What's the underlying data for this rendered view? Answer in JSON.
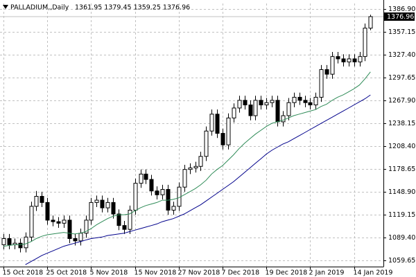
{
  "chart_data": {
    "type": "candlestick",
    "title": "PALLADIUM,,Daily",
    "ohlc_text": "1361.95 1379.45 1359.25 1376.96",
    "last_price": 1376.96,
    "categories": [
      "15 Oct 2018",
      null,
      null,
      null,
      null,
      null,
      null,
      null,
      "25 Oct 2018",
      null,
      null,
      null,
      null,
      null,
      null,
      null,
      "5 Nov 2018",
      null,
      null,
      null,
      null,
      null,
      null,
      null,
      "15 Nov 2018",
      null,
      null,
      null,
      null,
      null,
      null,
      null,
      "27 Nov 2018",
      null,
      null,
      null,
      null,
      null,
      null,
      null,
      "7 Dec 2018",
      null,
      null,
      null,
      null,
      null,
      null,
      null,
      "19 Dec 2018",
      null,
      null,
      null,
      null,
      null,
      null,
      null,
      "2 Jan 2019",
      null,
      null,
      null,
      null,
      null,
      null,
      null,
      "14 Jan 2019",
      null,
      null,
      null
    ],
    "open": [
      1080,
      1088,
      1080,
      1082,
      1076,
      1090,
      1130,
      1143,
      1135,
      1112,
      1110,
      1108,
      1112,
      1088,
      1085,
      1095,
      1112,
      1135,
      1138,
      1128,
      1135,
      1120,
      1105,
      1100,
      1125,
      1160,
      1172,
      1165,
      1150,
      1145,
      1152,
      1125,
      1130,
      1155,
      1178,
      1180,
      1182,
      1195,
      1228,
      1250,
      1225,
      1210,
      1245,
      1258,
      1268,
      1262,
      1248,
      1268,
      1262,
      1265,
      1268,
      1240,
      1248,
      1265,
      1272,
      1268,
      1265,
      1262,
      1272,
      1308,
      1302,
      1325,
      1322,
      1318,
      1322,
      1318,
      1325,
      1361.95
    ],
    "high": [
      1094,
      1094,
      1088,
      1088,
      1096,
      1136,
      1150,
      1149,
      1141,
      1118,
      1116,
      1118,
      1118,
      1094,
      1101,
      1118,
      1141,
      1144,
      1144,
      1141,
      1141,
      1126,
      1111,
      1131,
      1166,
      1178,
      1178,
      1171,
      1156,
      1158,
      1158,
      1136,
      1161,
      1184,
      1186,
      1188,
      1201,
      1234,
      1256,
      1256,
      1231,
      1251,
      1264,
      1274,
      1274,
      1268,
      1274,
      1274,
      1271,
      1274,
      1274,
      1254,
      1271,
      1278,
      1278,
      1274,
      1271,
      1278,
      1314,
      1314,
      1331,
      1331,
      1328,
      1328,
      1328,
      1331,
      1368,
      1379.45
    ],
    "low": [
      1074,
      1074,
      1074,
      1070,
      1070,
      1084,
      1124,
      1129,
      1106,
      1104,
      1102,
      1102,
      1082,
      1079,
      1079,
      1089,
      1106,
      1129,
      1122,
      1122,
      1114,
      1099,
      1094,
      1094,
      1119,
      1154,
      1159,
      1144,
      1139,
      1139,
      1119,
      1119,
      1124,
      1149,
      1172,
      1174,
      1176,
      1189,
      1222,
      1219,
      1204,
      1204,
      1239,
      1252,
      1256,
      1242,
      1242,
      1256,
      1256,
      1259,
      1234,
      1234,
      1242,
      1259,
      1262,
      1259,
      1256,
      1256,
      1266,
      1296,
      1296,
      1316,
      1312,
      1312,
      1312,
      1312,
      1319,
      1359.25
    ],
    "close": [
      1088,
      1080,
      1082,
      1076,
      1090,
      1130,
      1143,
      1135,
      1112,
      1110,
      1108,
      1112,
      1088,
      1085,
      1095,
      1112,
      1135,
      1138,
      1128,
      1135,
      1120,
      1105,
      1100,
      1125,
      1160,
      1172,
      1165,
      1150,
      1145,
      1152,
      1125,
      1130,
      1155,
      1178,
      1180,
      1182,
      1195,
      1228,
      1250,
      1225,
      1210,
      1245,
      1258,
      1268,
      1262,
      1248,
      1268,
      1262,
      1265,
      1268,
      1240,
      1248,
      1265,
      1272,
      1268,
      1265,
      1262,
      1272,
      1308,
      1302,
      1325,
      1322,
      1318,
      1322,
      1318,
      1325,
      1362,
      1376.96
    ],
    "moving_averages": [
      {
        "color": "#2e8b57",
        "values": [
          1078,
          1079,
          1080,
          1080,
          1081,
          1084,
          1088,
          1091,
          1093,
          1094,
          1095,
          1096,
          1095,
          1094,
          1095,
          1097,
          1101,
          1106,
          1110,
          1114,
          1117,
          1119,
          1119,
          1120,
          1124,
          1128,
          1131,
          1133,
          1135,
          1138,
          1138,
          1139,
          1141,
          1145,
          1149,
          1153,
          1158,
          1164,
          1172,
          1178,
          1183,
          1190,
          1197,
          1205,
          1212,
          1218,
          1224,
          1229,
          1234,
          1238,
          1240,
          1242,
          1245,
          1248,
          1250,
          1252,
          1254,
          1256,
          1260,
          1263,
          1268,
          1272,
          1275,
          1279,
          1283,
          1288,
          1296,
          1305
        ]
      },
      {
        "color": "#00008b",
        "values": [
          null,
          null,
          null,
          null,
          1054,
          1058,
          1062,
          1066,
          1069,
          1072,
          1075,
          1078,
          1080,
          1082,
          1084,
          1086,
          1088,
          1089,
          1090,
          1092,
          1093,
          1094,
          1095,
          1097,
          1099,
          1101,
          1103,
          1105,
          1107,
          1110,
          1112,
          1114,
          1117,
          1120,
          1124,
          1128,
          1132,
          1137,
          1142,
          1147,
          1152,
          1157,
          1162,
          1168,
          1174,
          1180,
          1186,
          1192,
          1198,
          1203,
          1207,
          1211,
          1214,
          1218,
          1222,
          1226,
          1230,
          1234,
          1238,
          1242,
          1246,
          1250,
          1254,
          1258,
          1262,
          1266,
          1270,
          1275
        ]
      }
    ],
    "ylim": [
      1051.5,
      1394.1
    ],
    "yticks": [
      {
        "value": 1386.9,
        "label": "1386.90"
      },
      1357.15,
      {
        "value": 1327.4,
        "label": "1327.40"
      },
      1297.65,
      {
        "value": 1267.9,
        "label": "1267.90"
      },
      1238.15,
      {
        "value": 1208.4,
        "label": "1208.40"
      },
      1178.65,
      {
        "value": 1148.9,
        "label": "1148.90"
      },
      1119.15,
      {
        "value": 1089.4,
        "label": "1089.40"
      },
      1059.65
    ],
    "grid": true
  }
}
